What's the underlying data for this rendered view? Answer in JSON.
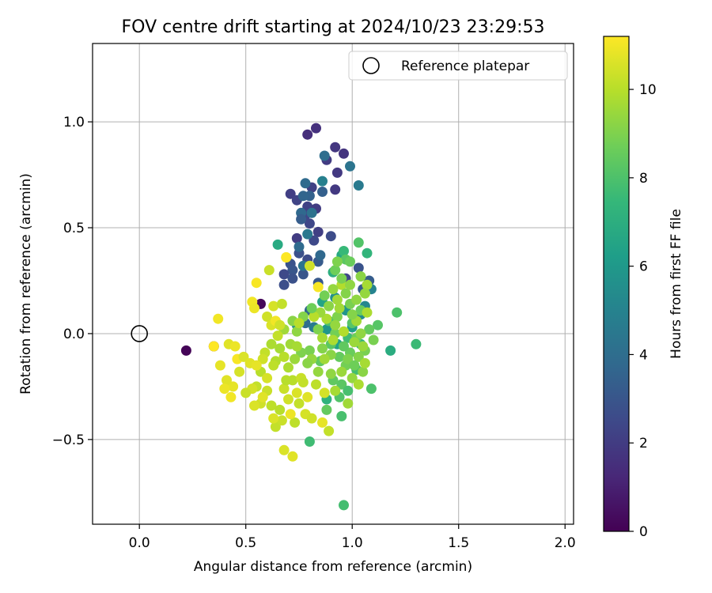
{
  "chart_data": {
    "type": "scatter",
    "title": "FOV centre drift starting at 2024/10/23 23:29:53",
    "xlabel": "Angular distance from reference (arcmin)",
    "ylabel": "Rotation from reference (arcmin)",
    "xlim": [
      -0.22,
      2.04
    ],
    "ylim": [
      -0.9,
      1.37
    ],
    "xticks": [
      "0.0",
      "0.5",
      "1.0",
      "1.5",
      "2.0"
    ],
    "xtick_values": [
      0,
      0.5,
      1.0,
      1.5,
      2.0
    ],
    "yticks": [
      "1.0",
      "0.5",
      "0.0",
      "−0.5"
    ],
    "ytick_values": [
      1.0,
      0.5,
      0.0,
      -0.5
    ],
    "grid": true,
    "legend": {
      "placement": "top-right",
      "label": "Reference platepar"
    },
    "reference_point": {
      "x": 0,
      "y": 0
    },
    "colorbar": {
      "label": "Hours from first FF file",
      "range": [
        0,
        11.2
      ],
      "ticks": [
        "0",
        "2",
        "4",
        "6",
        "8",
        "10"
      ],
      "tick_values": [
        0,
        2,
        4,
        6,
        8,
        10
      ],
      "colormap": "viridis",
      "stops": [
        "#440154",
        "#482878",
        "#3e4989",
        "#31688e",
        "#26828e",
        "#1f9e89",
        "#35b779",
        "#6ece58",
        "#b5de2b",
        "#fde725"
      ]
    },
    "points": [
      [
        0.22,
        -0.08,
        0.1
      ],
      [
        0.35,
        -0.06,
        0.3
      ],
      [
        0.57,
        0.14,
        0.2
      ],
      [
        0.79,
        0.94,
        1.5
      ],
      [
        0.83,
        0.97,
        1.6
      ],
      [
        0.92,
        0.88,
        1.8
      ],
      [
        0.96,
        0.85,
        1.7
      ],
      [
        0.88,
        0.82,
        2.0
      ],
      [
        0.93,
        0.76,
        1.9
      ],
      [
        0.81,
        0.69,
        2.2
      ],
      [
        0.92,
        0.68,
        1.9
      ],
      [
        0.71,
        0.66,
        2.1
      ],
      [
        0.74,
        0.63,
        2.3
      ],
      [
        0.79,
        0.6,
        2.2
      ],
      [
        0.83,
        0.59,
        2.0
      ],
      [
        0.78,
        0.56,
        2.4
      ],
      [
        0.8,
        0.52,
        2.4
      ],
      [
        0.84,
        0.48,
        2.1
      ],
      [
        0.74,
        0.45,
        2.0
      ],
      [
        0.82,
        0.44,
        2.5
      ],
      [
        0.9,
        0.46,
        2.6
      ],
      [
        0.75,
        0.38,
        2.8
      ],
      [
        0.71,
        0.33,
        2.9
      ],
      [
        0.79,
        0.35,
        2.6
      ],
      [
        0.72,
        0.3,
        3.0
      ],
      [
        0.77,
        0.28,
        3.0
      ],
      [
        0.68,
        0.28,
        2.5
      ],
      [
        0.68,
        0.23,
        2.7
      ],
      [
        0.72,
        0.26,
        2.8
      ],
      [
        0.84,
        0.34,
        3.2
      ],
      [
        0.84,
        0.24,
        3.1
      ],
      [
        0.97,
        0.26,
        2.4
      ],
      [
        1.03,
        0.31,
        2.9
      ],
      [
        1.08,
        0.25,
        3.3
      ],
      [
        1.05,
        0.21,
        3.2
      ],
      [
        0.87,
        0.84,
        4.0
      ],
      [
        0.99,
        0.79,
        4.3
      ],
      [
        0.86,
        0.72,
        4.9
      ],
      [
        1.03,
        0.7,
        4.6
      ],
      [
        0.78,
        0.71,
        3.9
      ],
      [
        0.86,
        0.67,
        3.4
      ],
      [
        0.8,
        0.65,
        3.5
      ],
      [
        0.77,
        0.65,
        3.6
      ],
      [
        0.81,
        0.57,
        4.2
      ],
      [
        0.76,
        0.57,
        3.8
      ],
      [
        0.76,
        0.54,
        3.3
      ],
      [
        0.85,
        0.37,
        3.8
      ],
      [
        0.75,
        0.41,
        3.9
      ],
      [
        0.77,
        0.32,
        4.3
      ],
      [
        0.79,
        0.47,
        4.5
      ],
      [
        1.09,
        0.21,
        5.0
      ],
      [
        1.06,
        0.13,
        5.2
      ],
      [
        1.04,
        0.09,
        5.4
      ],
      [
        0.97,
        0.11,
        5.8
      ],
      [
        0.78,
        0.05,
        4.0
      ],
      [
        0.82,
        0.03,
        4.6
      ],
      [
        0.74,
        0.04,
        5.5
      ],
      [
        0.8,
        0.11,
        3.7
      ],
      [
        0.92,
        0.17,
        5.6
      ],
      [
        1.18,
        -0.08,
        6.9
      ],
      [
        1.04,
        -0.05,
        7.1
      ],
      [
        0.88,
        -0.31,
        7.2
      ],
      [
        0.95,
        0.37,
        6.7
      ],
      [
        0.65,
        0.42,
        6.8
      ],
      [
        1.07,
        0.38,
        7.3
      ],
      [
        0.91,
        0.29,
        7.0
      ],
      [
        0.96,
        0.39,
        7.5
      ],
      [
        0.88,
        0.02,
        5.9
      ],
      [
        1.0,
        0.03,
        6.2
      ],
      [
        0.86,
        0.15,
        6.5
      ],
      [
        0.93,
        -0.05,
        6.4
      ],
      [
        1.3,
        -0.05,
        7.6
      ],
      [
        1.21,
        0.1,
        8.0
      ],
      [
        1.03,
        0.43,
        8.1
      ],
      [
        1.09,
        -0.26,
        8.0
      ],
      [
        0.96,
        -0.81,
        7.8
      ],
      [
        0.8,
        -0.51,
        7.7
      ],
      [
        0.95,
        -0.39,
        7.9
      ],
      [
        1.12,
        0.04,
        8.2
      ],
      [
        1.02,
        -0.17,
        7.8
      ],
      [
        0.95,
        -0.24,
        8.3
      ],
      [
        0.98,
        -0.27,
        7.9
      ],
      [
        0.91,
        -0.22,
        8.4
      ],
      [
        0.94,
        -0.3,
        8.1
      ],
      [
        0.88,
        -0.36,
        8.5
      ],
      [
        0.98,
        -0.02,
        7.7
      ],
      [
        0.97,
        0.35,
        8.3
      ],
      [
        0.85,
        -0.13,
        8.4
      ],
      [
        1.04,
        0.11,
        8.6
      ],
      [
        0.92,
        0.3,
        8.7
      ],
      [
        0.87,
        0.18,
        8.8
      ],
      [
        1.0,
        0.05,
        8.2
      ],
      [
        1.06,
        -0.08,
        8.9
      ],
      [
        0.94,
        -0.11,
        8.5
      ],
      [
        0.99,
        -0.09,
        8.6
      ],
      [
        0.9,
        -0.05,
        8.3
      ],
      [
        1.02,
        -0.02,
        8.7
      ],
      [
        1.08,
        0.02,
        8.5
      ],
      [
        1.1,
        -0.03,
        8.9
      ],
      [
        0.89,
        0.06,
        8.0
      ],
      [
        0.92,
        0.0,
        8.8
      ],
      [
        0.96,
        -0.06,
        8.4
      ],
      [
        0.99,
        0.14,
        8.9
      ],
      [
        0.93,
        0.08,
        9.0
      ],
      [
        1.03,
        -0.11,
        9.1
      ],
      [
        0.97,
        -0.15,
        8.8
      ],
      [
        1.05,
        -0.18,
        9.2
      ],
      [
        0.9,
        -0.19,
        9.3
      ],
      [
        0.86,
        -0.07,
        9.1
      ],
      [
        0.84,
        0.02,
        9.0
      ],
      [
        0.8,
        -0.08,
        8.9
      ],
      [
        0.81,
        -0.12,
        9.4
      ],
      [
        0.76,
        -0.09,
        9.0
      ],
      [
        0.79,
        -0.14,
        9.2
      ],
      [
        0.84,
        -0.18,
        9.4
      ],
      [
        0.73,
        -0.12,
        9.5
      ],
      [
        0.71,
        -0.05,
        9.6
      ],
      [
        0.74,
        0.01,
        9.3
      ],
      [
        0.77,
        0.08,
        9.1
      ],
      [
        0.72,
        0.06,
        9.2
      ],
      [
        0.68,
        0.02,
        9.6
      ],
      [
        0.66,
        -0.07,
        9.7
      ],
      [
        0.7,
        -0.16,
        9.8
      ],
      [
        0.64,
        -0.13,
        9.9
      ],
      [
        0.62,
        -0.05,
        9.8
      ],
      [
        0.63,
        -0.15,
        10.1
      ],
      [
        0.59,
        -0.09,
        10.2
      ],
      [
        0.57,
        -0.18,
        10.0
      ],
      [
        0.55,
        -0.25,
        10.2
      ],
      [
        0.6,
        -0.27,
        10.3
      ],
      [
        0.62,
        -0.34,
        10.1
      ],
      [
        0.66,
        -0.36,
        10.0
      ],
      [
        0.64,
        -0.44,
        10.2
      ],
      [
        0.67,
        -0.41,
        10.3
      ],
      [
        0.73,
        -0.42,
        10.1
      ],
      [
        0.7,
        -0.31,
        10.4
      ],
      [
        0.75,
        -0.33,
        10.2
      ],
      [
        0.78,
        -0.38,
        10.5
      ],
      [
        0.72,
        -0.22,
        10.0
      ],
      [
        0.68,
        -0.26,
        10.3
      ],
      [
        0.57,
        -0.33,
        10.4
      ],
      [
        0.53,
        -0.26,
        10.5
      ],
      [
        0.5,
        -0.28,
        10.3
      ],
      [
        0.54,
        -0.34,
        10.6
      ],
      [
        0.47,
        -0.18,
        10.5
      ],
      [
        0.44,
        -0.25,
        10.8
      ],
      [
        0.41,
        -0.22,
        10.7
      ],
      [
        0.4,
        -0.26,
        10.9
      ],
      [
        0.43,
        -0.3,
        11.0
      ],
      [
        0.38,
        -0.15,
        10.8
      ],
      [
        0.42,
        -0.05,
        10.7
      ],
      [
        0.45,
        -0.06,
        10.9
      ],
      [
        0.46,
        -0.12,
        11.1
      ],
      [
        0.49,
        -0.11,
        10.6
      ],
      [
        0.52,
        -0.14,
        10.7
      ],
      [
        0.6,
        0.08,
        10.4
      ],
      [
        0.62,
        0.04,
        10.6
      ],
      [
        0.63,
        0.13,
        10.5
      ],
      [
        0.67,
        0.14,
        10.2
      ],
      [
        0.61,
        0.3,
        10.3
      ],
      [
        0.69,
        0.36,
        10.1
      ],
      [
        0.8,
        0.32,
        10.4
      ],
      [
        0.75,
        0.05,
        10.0
      ],
      [
        0.53,
        0.15,
        11.0
      ],
      [
        0.55,
        0.24,
        11.1
      ],
      [
        0.54,
        0.12,
        10.9
      ],
      [
        0.37,
        0.07,
        11.0
      ],
      [
        0.35,
        -0.06,
        11.2
      ],
      [
        0.64,
        0.06,
        11.0
      ],
      [
        0.69,
        0.36,
        11.2
      ],
      [
        0.84,
        0.22,
        11.1
      ],
      [
        0.68,
        -0.55,
        10.6
      ],
      [
        0.72,
        -0.58,
        10.7
      ],
      [
        0.86,
        -0.42,
        10.8
      ],
      [
        0.89,
        -0.46,
        10.2
      ],
      [
        0.71,
        -0.38,
        10.9
      ],
      [
        0.63,
        -0.4,
        10.6
      ],
      [
        0.81,
        -0.4,
        10.4
      ],
      [
        0.76,
        -0.21,
        10.3
      ],
      [
        0.87,
        -0.28,
        10.5
      ],
      [
        0.83,
        -0.24,
        10.1
      ],
      [
        0.92,
        -0.27,
        9.7
      ],
      [
        0.95,
        -0.18,
        9.5
      ],
      [
        1.0,
        -0.21,
        9.4
      ],
      [
        0.98,
        -0.33,
        9.6
      ],
      [
        1.03,
        -0.24,
        9.8
      ],
      [
        1.06,
        -0.14,
        9.7
      ],
      [
        1.01,
        -0.04,
        9.5
      ],
      [
        0.96,
        0.01,
        9.9
      ],
      [
        1.02,
        0.06,
        9.6
      ],
      [
        1.07,
        0.1,
        9.8
      ],
      [
        1.02,
        0.16,
        9.3
      ],
      [
        1.07,
        0.23,
        9.7
      ],
      [
        1.06,
        0.19,
        9.4
      ],
      [
        1.04,
        0.27,
        9.2
      ],
      [
        0.93,
        0.16,
        9.6
      ],
      [
        0.95,
        0.23,
        9.9
      ],
      [
        0.91,
        0.21,
        9.4
      ],
      [
        0.88,
        0.07,
        9.8
      ],
      [
        0.85,
        0.1,
        9.5
      ],
      [
        0.82,
        0.08,
        10.0
      ],
      [
        0.86,
        -0.02,
        9.7
      ],
      [
        0.9,
        -0.1,
        9.2
      ],
      [
        0.98,
        -0.12,
        9.0
      ],
      [
        1.01,
        -0.15,
        8.7
      ],
      [
        0.97,
        0.19,
        9.1
      ],
      [
        0.99,
        0.23,
        9.3
      ],
      [
        0.93,
        0.34,
        9.0
      ],
      [
        0.99,
        0.34,
        8.6
      ],
      [
        0.95,
        0.26,
        8.9
      ],
      [
        0.81,
        0.12,
        8.7
      ],
      [
        0.89,
        0.13,
        9.2
      ],
      [
        0.92,
        0.04,
        9.4
      ],
      [
        0.94,
        0.12,
        9.6
      ],
      [
        1.0,
        0.09,
        9.1
      ],
      [
        1.04,
        0.0,
        9.3
      ],
      [
        1.05,
        -0.06,
        9.5
      ],
      [
        0.91,
        -0.03,
        9.8
      ],
      [
        0.87,
        -0.12,
        9.6
      ],
      [
        0.74,
        -0.06,
        9.7
      ],
      [
        0.68,
        -0.11,
        10.0
      ],
      [
        0.65,
        -0.01,
        10.2
      ],
      [
        0.66,
        0.04,
        10.4
      ],
      [
        0.69,
        -0.22,
        10.0
      ],
      [
        0.74,
        -0.28,
        10.6
      ],
      [
        0.79,
        -0.3,
        10.7
      ],
      [
        0.77,
        -0.23,
        10.2
      ],
      [
        0.6,
        -0.21,
        10.5
      ],
      [
        0.58,
        -0.12,
        10.4
      ],
      [
        0.55,
        -0.15,
        10.8
      ],
      [
        0.58,
        -0.3,
        10.7
      ]
    ]
  }
}
